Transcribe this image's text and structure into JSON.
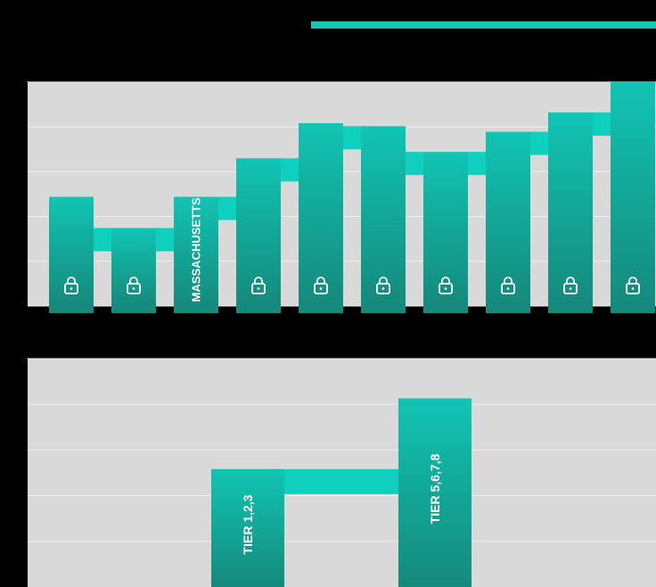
{
  "colors": {
    "background": "#000000",
    "plot_bg": "#d9d9d9",
    "gridline": "#efefef",
    "bar_top": "#11c4b4",
    "bar_bottom": "#158a7c",
    "connector": "#0fcfbf",
    "text": "#ffffff"
  },
  "chart_data": [
    {
      "type": "bar",
      "categories": [
        "",
        "",
        "MASSACHUSETTS",
        "",
        "",
        "",
        "",
        "",
        "",
        ""
      ],
      "values": [
        25.5,
        18.2,
        25.5,
        34.5,
        42.7,
        42.0,
        36.0,
        40.7,
        45.2,
        52.3
      ],
      "ylim": [
        0,
        52.3
      ],
      "grid": true,
      "bar_icons": [
        "lock-icon",
        "lock-icon",
        null,
        "lock-icon",
        "lock-icon",
        "lock-icon",
        "lock-icon",
        "lock-icon",
        "lock-icon",
        "lock-icon"
      ]
    },
    {
      "type": "bar",
      "categories": [
        "TIER 1,2,3",
        "TIER 5,6,7,8"
      ],
      "values": [
        27.0,
        43.2
      ],
      "ylim": [
        0,
        52.3
      ],
      "grid": true
    }
  ]
}
